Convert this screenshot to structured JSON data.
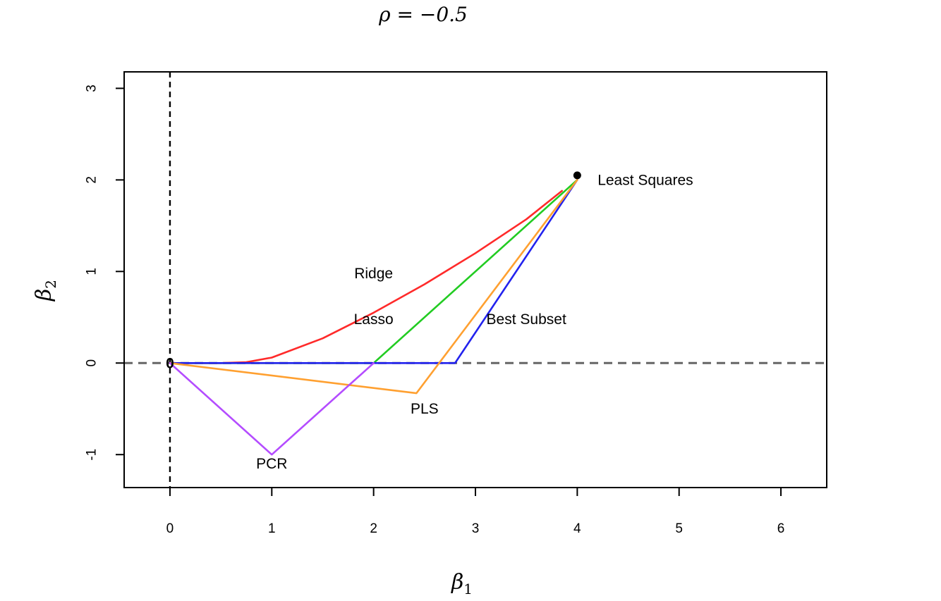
{
  "chart_data": {
    "type": "line",
    "title": "ρ = −0.5",
    "xlabel": "β",
    "xlabel_sub": "1",
    "ylabel": "β",
    "ylabel_sub": "2",
    "xlim": [
      -0.45,
      6.45
    ],
    "ylim": [
      -1.36,
      3.18
    ],
    "x_ticks": [
      0,
      1,
      2,
      3,
      4,
      5,
      6
    ],
    "y_ticks": [
      -1,
      0,
      1,
      2,
      3
    ],
    "grid": false,
    "reference_lines": [
      {
        "orientation": "horizontal",
        "value": 0,
        "color": "#666666",
        "style": "dashed"
      },
      {
        "orientation": "vertical",
        "value": 0,
        "color": "#000000",
        "style": "dashed"
      }
    ],
    "series": [
      {
        "name": "Ridge",
        "color": "#ff2a2a",
        "x": [
          0,
          0.5,
          0.75,
          1.0,
          1.5,
          2.0,
          2.5,
          3.0,
          3.5,
          3.85
        ],
        "y": [
          0,
          0,
          0.01,
          0.06,
          0.27,
          0.55,
          0.86,
          1.2,
          1.57,
          1.88
        ]
      },
      {
        "name": "Lasso",
        "color": "#22cc22",
        "x": [
          0,
          2.0,
          4.0
        ],
        "y": [
          0,
          0,
          2.0
        ]
      },
      {
        "name": "Best Subset",
        "color": "#2222ee",
        "x": [
          0,
          2.8,
          4.0
        ],
        "y": [
          0,
          0,
          2.0
        ]
      },
      {
        "name": "PLS",
        "color": "#ffa030",
        "x": [
          0,
          2.42,
          4.0
        ],
        "y": [
          0,
          -0.33,
          2.0
        ]
      },
      {
        "name": "PCR",
        "color": "#b44cff",
        "x": [
          0,
          1.0,
          2.0
        ],
        "y": [
          0,
          -1.0,
          0
        ]
      }
    ],
    "points": [
      {
        "name": "Least Squares",
        "x": 4.0,
        "y": 2.05,
        "color": "#000000"
      }
    ],
    "annotations": [
      {
        "text": "Least Squares",
        "x": 4.2,
        "y": 2.0,
        "anchor": "start"
      },
      {
        "text": "Ridge",
        "x": 2.0,
        "y": 0.98,
        "anchor": "middle"
      },
      {
        "text": "Lasso",
        "x": 2.0,
        "y": 0.48,
        "anchor": "middle"
      },
      {
        "text": "Best Subset",
        "x": 3.5,
        "y": 0.48,
        "anchor": "middle"
      },
      {
        "text": "PLS",
        "x": 2.5,
        "y": -0.5,
        "anchor": "middle"
      },
      {
        "text": "PCR",
        "x": 1.0,
        "y": -1.1,
        "anchor": "middle"
      },
      {
        "text": "0",
        "x": 0,
        "y": 0,
        "anchor": "middle"
      }
    ]
  }
}
